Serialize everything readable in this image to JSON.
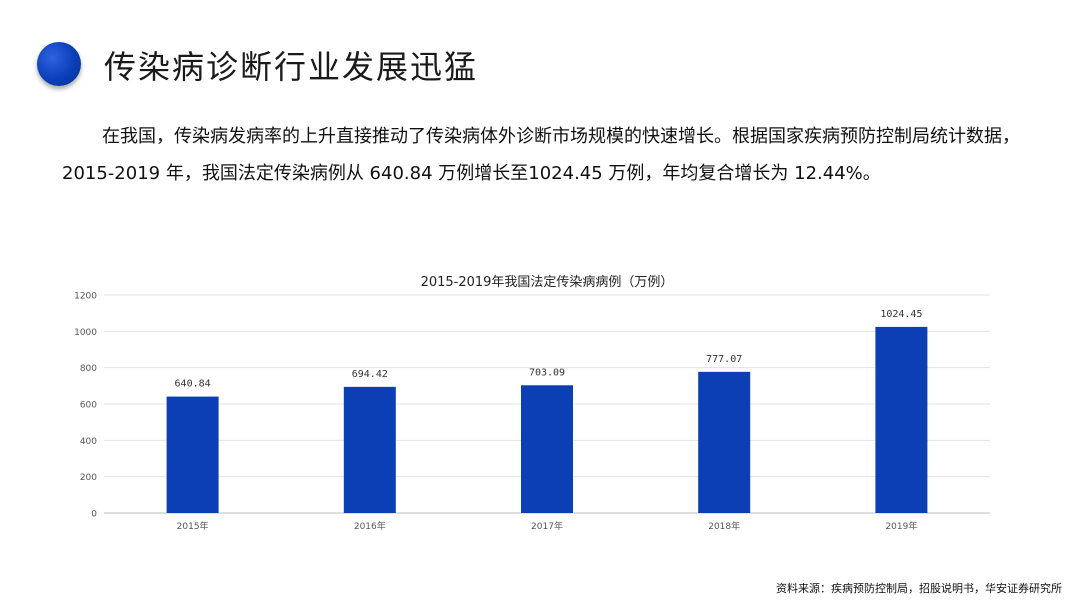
{
  "title": "传染病诊断行业发展迅猛",
  "paragraph": "在我国，传染病发病率的上升直接推动了传染病体外诊断市场规模的快速增长。根据国家疾病预防控制局统计数据，2015-2019 年，我国法定传染病例从 640.84 万例增长至1024.45 万例，年均复合增长为 12.44%。",
  "source": "资料来源：疾病预防控制局，招股说明书，华安证券研究所",
  "chart_data": {
    "type": "bar",
    "title": "2015-2019年我国法定传染病病例（万例）",
    "categories": [
      "2015年",
      "2016年",
      "2017年",
      "2018年",
      "2019年"
    ],
    "values": [
      640.84,
      694.42,
      703.09,
      777.07,
      1024.45
    ],
    "value_labels": [
      "640.84",
      "694.42",
      "703.09",
      "777.07",
      "1024.45"
    ],
    "ylim": [
      0,
      1200
    ],
    "yticks": [
      0,
      200,
      400,
      600,
      800,
      1000,
      1200
    ],
    "grid": true,
    "bar_color": "#0c3fb3"
  }
}
